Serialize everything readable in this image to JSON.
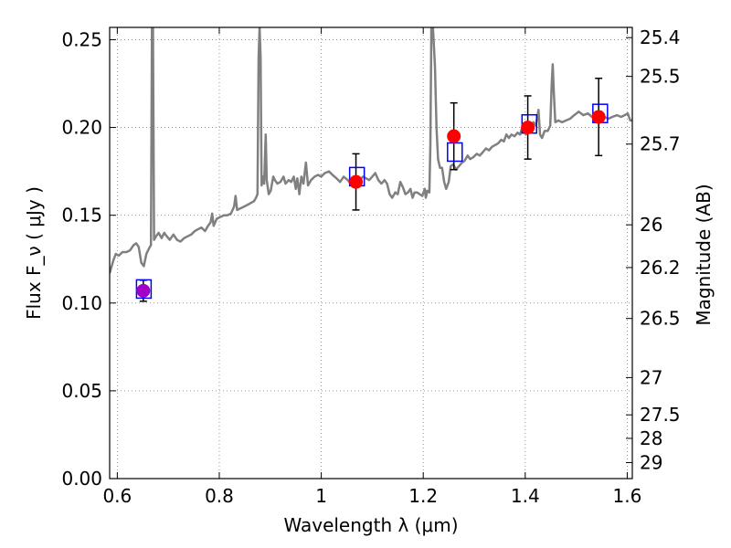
{
  "chart_data": {
    "type": "scatter",
    "xlabel": "Wavelength  λ (μm)",
    "ylabel_left": "Flux  F_ν  ( μJy )",
    "ylabel_right": "Magnitude (AB)",
    "xlim": [
      0.585,
      1.61
    ],
    "ylim": [
      0.0,
      0.257
    ],
    "grid": true,
    "x_ticks": [
      {
        "value": 0.6,
        "label": "0.6"
      },
      {
        "value": 0.8,
        "label": "0.8"
      },
      {
        "value": 1.0,
        "label": "1"
      },
      {
        "value": 1.2,
        "label": "1.2"
      },
      {
        "value": 1.4,
        "label": "1.4"
      },
      {
        "value": 1.6,
        "label": "1.6"
      }
    ],
    "y_ticks": [
      {
        "value": 0.0,
        "label": "0.00"
      },
      {
        "value": 0.05,
        "label": "0.05"
      },
      {
        "value": 0.1,
        "label": "0.10"
      },
      {
        "value": 0.15,
        "label": "0.15"
      },
      {
        "value": 0.2,
        "label": "0.20"
      },
      {
        "value": 0.25,
        "label": "0.25"
      }
    ],
    "mag_ticks": [
      {
        "mag": 25.4,
        "label": "25.4"
      },
      {
        "mag": 25.5,
        "label": "25.5"
      },
      {
        "mag": 25.7,
        "label": "25.7"
      },
      {
        "mag": 26.0,
        "label": "26"
      },
      {
        "mag": 26.2,
        "label": "26.2"
      },
      {
        "mag": 26.5,
        "label": "26.5"
      },
      {
        "mag": 27.0,
        "label": "27"
      },
      {
        "mag": 27.5,
        "label": "27.5"
      },
      {
        "mag": 28.0,
        "label": "28"
      },
      {
        "mag": 29.0,
        "label": "29"
      }
    ],
    "model_spectrum": {
      "color": "#808080",
      "points": [
        [
          0.585,
          0.117
        ],
        [
          0.592,
          0.124
        ],
        [
          0.597,
          0.128
        ],
        [
          0.603,
          0.127
        ],
        [
          0.61,
          0.129
        ],
        [
          0.618,
          0.129
        ],
        [
          0.625,
          0.13
        ],
        [
          0.632,
          0.133
        ],
        [
          0.637,
          0.134
        ],
        [
          0.642,
          0.132
        ],
        [
          0.647,
          0.123
        ],
        [
          0.652,
          0.121
        ],
        [
          0.657,
          0.128
        ],
        [
          0.662,
          0.131
        ],
        [
          0.666,
          0.133
        ],
        [
          0.668,
          0.257
        ],
        [
          0.67,
          0.257
        ],
        [
          0.672,
          0.136
        ],
        [
          0.676,
          0.138
        ],
        [
          0.681,
          0.14
        ],
        [
          0.687,
          0.137
        ],
        [
          0.692,
          0.14
        ],
        [
          0.697,
          0.138
        ],
        [
          0.703,
          0.136
        ],
        [
          0.71,
          0.139
        ],
        [
          0.717,
          0.136
        ],
        [
          0.724,
          0.135
        ],
        [
          0.731,
          0.137
        ],
        [
          0.738,
          0.138
        ],
        [
          0.745,
          0.139
        ],
        [
          0.752,
          0.141
        ],
        [
          0.758,
          0.142
        ],
        [
          0.765,
          0.143
        ],
        [
          0.772,
          0.141
        ],
        [
          0.778,
          0.144
        ],
        [
          0.783,
          0.146
        ],
        [
          0.786,
          0.151
        ],
        [
          0.789,
          0.144
        ],
        [
          0.795,
          0.148
        ],
        [
          0.802,
          0.149
        ],
        [
          0.809,
          0.15
        ],
        [
          0.816,
          0.15
        ],
        [
          0.823,
          0.151
        ],
        [
          0.829,
          0.155
        ],
        [
          0.832,
          0.161
        ],
        [
          0.835,
          0.153
        ],
        [
          0.842,
          0.154
        ],
        [
          0.849,
          0.155
        ],
        [
          0.856,
          0.156
        ],
        [
          0.862,
          0.157
        ],
        [
          0.868,
          0.158
        ],
        [
          0.872,
          0.16
        ],
        [
          0.875,
          0.162
        ],
        [
          0.877,
          0.24
        ],
        [
          0.879,
          0.257
        ],
        [
          0.881,
          0.24
        ],
        [
          0.883,
          0.167
        ],
        [
          0.886,
          0.172
        ],
        [
          0.888,
          0.168
        ],
        [
          0.891,
          0.196
        ],
        [
          0.893,
          0.17
        ],
        [
          0.897,
          0.162
        ],
        [
          0.901,
          0.164
        ],
        [
          0.904,
          0.169
        ],
        [
          0.906,
          0.172
        ],
        [
          0.909,
          0.17
        ],
        [
          0.914,
          0.168
        ],
        [
          0.92,
          0.169
        ],
        [
          0.926,
          0.172
        ],
        [
          0.93,
          0.168
        ],
        [
          0.936,
          0.17
        ],
        [
          0.941,
          0.169
        ],
        [
          0.946,
          0.172
        ],
        [
          0.95,
          0.165
        ],
        [
          0.953,
          0.171
        ],
        [
          0.957,
          0.162
        ],
        [
          0.961,
          0.172
        ],
        [
          0.965,
          0.168
        ],
        [
          0.97,
          0.18
        ],
        [
          0.974,
          0.167
        ],
        [
          0.98,
          0.17
        ],
        [
          0.987,
          0.172
        ],
        [
          0.994,
          0.173
        ],
        [
          1.0,
          0.172
        ],
        [
          1.007,
          0.174
        ],
        [
          1.015,
          0.175
        ],
        [
          1.022,
          0.173
        ],
        [
          1.03,
          0.171
        ],
        [
          1.037,
          0.169
        ],
        [
          1.044,
          0.172
        ],
        [
          1.052,
          0.17
        ],
        [
          1.06,
          0.167
        ],
        [
          1.067,
          0.168
        ],
        [
          1.075,
          0.17
        ],
        [
          1.082,
          0.172
        ],
        [
          1.088,
          0.171
        ],
        [
          1.094,
          0.17
        ],
        [
          1.1,
          0.172
        ],
        [
          1.106,
          0.174
        ],
        [
          1.112,
          0.17
        ],
        [
          1.118,
          0.168
        ],
        [
          1.124,
          0.17
        ],
        [
          1.129,
          0.168
        ],
        [
          1.134,
          0.162
        ],
        [
          1.139,
          0.16
        ],
        [
          1.145,
          0.163
        ],
        [
          1.15,
          0.162
        ],
        [
          1.155,
          0.169
        ],
        [
          1.16,
          0.166
        ],
        [
          1.165,
          0.162
        ],
        [
          1.17,
          0.163
        ],
        [
          1.175,
          0.165
        ],
        [
          1.179,
          0.16
        ],
        [
          1.183,
          0.163
        ],
        [
          1.188,
          0.163
        ],
        [
          1.193,
          0.162
        ],
        [
          1.198,
          0.161
        ],
        [
          1.203,
          0.165
        ],
        [
          1.205,
          0.16
        ],
        [
          1.208,
          0.164
        ],
        [
          1.212,
          0.163
        ],
        [
          1.214,
          0.19
        ],
        [
          1.216,
          0.257
        ],
        [
          1.219,
          0.257
        ],
        [
          1.223,
          0.235
        ],
        [
          1.226,
          0.2
        ],
        [
          1.229,
          0.182
        ],
        [
          1.233,
          0.177
        ],
        [
          1.237,
          0.177
        ],
        [
          1.241,
          0.169
        ],
        [
          1.245,
          0.165
        ],
        [
          1.25,
          0.169
        ],
        [
          1.254,
          0.178
        ],
        [
          1.259,
          0.179
        ],
        [
          1.264,
          0.176
        ],
        [
          1.27,
          0.178
        ],
        [
          1.276,
          0.18
        ],
        [
          1.281,
          0.181
        ],
        [
          1.287,
          0.184
        ],
        [
          1.292,
          0.182
        ],
        [
          1.298,
          0.183
        ],
        [
          1.305,
          0.185
        ],
        [
          1.311,
          0.184
        ],
        [
          1.317,
          0.186
        ],
        [
          1.323,
          0.188
        ],
        [
          1.329,
          0.187
        ],
        [
          1.335,
          0.189
        ],
        [
          1.341,
          0.19
        ],
        [
          1.347,
          0.191
        ],
        [
          1.353,
          0.193
        ],
        [
          1.358,
          0.192
        ],
        [
          1.363,
          0.196
        ],
        [
          1.368,
          0.194
        ],
        [
          1.373,
          0.196
        ],
        [
          1.379,
          0.195
        ],
        [
          1.385,
          0.197
        ],
        [
          1.39,
          0.196
        ],
        [
          1.396,
          0.202
        ],
        [
          1.401,
          0.196
        ],
        [
          1.406,
          0.199
        ],
        [
          1.411,
          0.2
        ],
        [
          1.416,
          0.203
        ],
        [
          1.421,
          0.201
        ],
        [
          1.426,
          0.21
        ],
        [
          1.429,
          0.196
        ],
        [
          1.433,
          0.194
        ],
        [
          1.438,
          0.198
        ],
        [
          1.444,
          0.198
        ],
        [
          1.449,
          0.201
        ],
        [
          1.452,
          0.225
        ],
        [
          1.454,
          0.236
        ],
        [
          1.456,
          0.22
        ],
        [
          1.459,
          0.203
        ],
        [
          1.465,
          0.204
        ],
        [
          1.472,
          0.203
        ],
        [
          1.48,
          0.204
        ],
        [
          1.488,
          0.205
        ],
        [
          1.496,
          0.207
        ],
        [
          1.505,
          0.209
        ],
        [
          1.514,
          0.207
        ],
        [
          1.523,
          0.208
        ],
        [
          1.531,
          0.206
        ],
        [
          1.539,
          0.207
        ],
        [
          1.547,
          0.208
        ],
        [
          1.555,
          0.206
        ],
        [
          1.563,
          0.205
        ],
        [
          1.571,
          0.206
        ],
        [
          1.58,
          0.207
        ],
        [
          1.588,
          0.206
        ],
        [
          1.595,
          0.207
        ],
        [
          1.601,
          0.208
        ],
        [
          1.606,
          0.204
        ],
        [
          1.61,
          0.204
        ]
      ]
    },
    "model_photometry": [
      {
        "x": 0.652,
        "y": 0.108
      },
      {
        "x": 1.07,
        "y": 0.172
      },
      {
        "x": 1.262,
        "y": 0.186
      },
      {
        "x": 1.408,
        "y": 0.202
      },
      {
        "x": 1.547,
        "y": 0.208
      }
    ],
    "observed_photometry": [
      {
        "x": 0.651,
        "y": 0.107,
        "err": 0.006,
        "color": "#a000c8"
      },
      {
        "x": 1.068,
        "y": 0.169,
        "err": 0.016,
        "color": "#ff0000"
      },
      {
        "x": 1.26,
        "y": 0.195,
        "err": 0.019,
        "color": "#ff0000"
      },
      {
        "x": 1.405,
        "y": 0.2,
        "err": 0.018,
        "color": "#ff0000"
      },
      {
        "x": 1.544,
        "y": 0.206,
        "err": 0.022,
        "color": "#ff0000"
      }
    ],
    "colors": {
      "spectrum": "#808080",
      "model_box": "#0000ff",
      "observed": "#ff0000",
      "errorbar": "#000000",
      "grid": "#808080"
    }
  }
}
